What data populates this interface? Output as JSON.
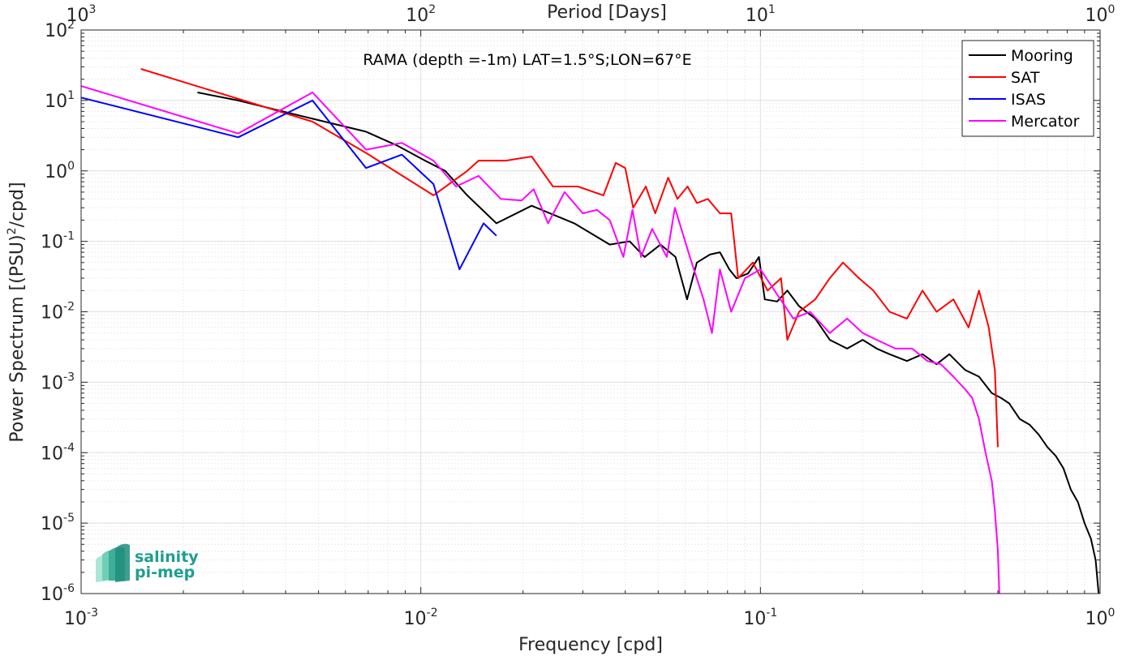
{
  "chart_data": {
    "type": "line",
    "annotation": "RAMA (depth =-1m) LAT=1.5°S;LON=67°E",
    "xlabel": "Frequency [cpd]",
    "ylabel": "Power Spectrum [(PSU)²/cpd]",
    "x2label": "Period [Days]",
    "xscale": "log",
    "yscale": "log",
    "xlim": [
      0.001,
      1
    ],
    "ylim": [
      1e-06,
      100
    ],
    "x_ticks": [
      {
        "value": 0.001,
        "base": "10",
        "exp": "-3"
      },
      {
        "value": 0.01,
        "base": "10",
        "exp": "-2"
      },
      {
        "value": 0.1,
        "base": "10",
        "exp": "-1"
      },
      {
        "value": 1,
        "base": "10",
        "exp": "0"
      }
    ],
    "x2_ticks": [
      {
        "value": 0.001,
        "base": "10",
        "exp": "3"
      },
      {
        "value": 0.01,
        "base": "10",
        "exp": "2"
      },
      {
        "value": 0.1,
        "base": "10",
        "exp": "1"
      },
      {
        "value": 1,
        "base": "10",
        "exp": "0"
      }
    ],
    "y_ticks": [
      {
        "value": 100,
        "base": "10",
        "exp": "2"
      },
      {
        "value": 10,
        "base": "10",
        "exp": "1"
      },
      {
        "value": 1,
        "base": "10",
        "exp": "0"
      },
      {
        "value": 0.1,
        "base": "10",
        "exp": "-1"
      },
      {
        "value": 0.01,
        "base": "10",
        "exp": "-2"
      },
      {
        "value": 0.001,
        "base": "10",
        "exp": "-3"
      },
      {
        "value": 0.0001,
        "base": "10",
        "exp": "-4"
      },
      {
        "value": 1e-05,
        "base": "10",
        "exp": "-5"
      },
      {
        "value": 1e-06,
        "base": "10",
        "exp": "-6"
      }
    ],
    "grid": true,
    "legend_position": "top-right",
    "series": [
      {
        "name": "Mooring",
        "color": "#000000",
        "points": [
          [
            0.0022,
            13.0
          ],
          [
            0.0029,
            10.0
          ],
          [
            0.0048,
            5.5
          ],
          [
            0.0069,
            3.6
          ],
          [
            0.0085,
            2.3
          ],
          [
            0.0103,
            1.4
          ],
          [
            0.0118,
            1.0
          ],
          [
            0.0137,
            0.45
          ],
          [
            0.0167,
            0.18
          ],
          [
            0.0212,
            0.32
          ],
          [
            0.0283,
            0.18
          ],
          [
            0.036,
            0.09
          ],
          [
            0.0412,
            0.1
          ],
          [
            0.0456,
            0.06
          ],
          [
            0.0508,
            0.09
          ],
          [
            0.0562,
            0.06
          ],
          [
            0.0608,
            0.015
          ],
          [
            0.065,
            0.05
          ],
          [
            0.071,
            0.065
          ],
          [
            0.076,
            0.07
          ],
          [
            0.081,
            0.04
          ],
          [
            0.085,
            0.03
          ],
          [
            0.092,
            0.035
          ],
          [
            0.099,
            0.06
          ],
          [
            0.103,
            0.015
          ],
          [
            0.112,
            0.014
          ],
          [
            0.12,
            0.02
          ],
          [
            0.13,
            0.012
          ],
          [
            0.145,
            0.008
          ],
          [
            0.16,
            0.004
          ],
          [
            0.18,
            0.003
          ],
          [
            0.2,
            0.004
          ],
          [
            0.22,
            0.003
          ],
          [
            0.24,
            0.0025
          ],
          [
            0.27,
            0.002
          ],
          [
            0.3,
            0.0025
          ],
          [
            0.33,
            0.0018
          ],
          [
            0.36,
            0.0025
          ],
          [
            0.4,
            0.0015
          ],
          [
            0.44,
            0.0012
          ],
          [
            0.48,
            0.0007
          ],
          [
            0.51,
            0.0006
          ],
          [
            0.54,
            0.0005
          ],
          [
            0.58,
            0.0003
          ],
          [
            0.62,
            0.00025
          ],
          [
            0.66,
            0.00018
          ],
          [
            0.7,
            0.00012
          ],
          [
            0.74,
            9e-05
          ],
          [
            0.78,
            6e-05
          ],
          [
            0.82,
            3e-05
          ],
          [
            0.86,
            2e-05
          ],
          [
            0.9,
            1e-05
          ],
          [
            0.94,
            6e-06
          ],
          [
            0.97,
            3e-06
          ],
          [
            0.99,
            1e-06
          ]
        ]
      },
      {
        "name": "SAT",
        "color": "#ff0000",
        "points": [
          [
            0.0015,
            28.0
          ],
          [
            0.0048,
            5.0
          ],
          [
            0.0069,
            1.8
          ],
          [
            0.0109,
            0.45
          ],
          [
            0.0137,
            1.0
          ],
          [
            0.0148,
            1.4
          ],
          [
            0.0178,
            1.4
          ],
          [
            0.0212,
            1.6
          ],
          [
            0.0245,
            0.6
          ],
          [
            0.029,
            0.6
          ],
          [
            0.0345,
            0.45
          ],
          [
            0.0375,
            1.3
          ],
          [
            0.04,
            1.1
          ],
          [
            0.0422,
            0.3
          ],
          [
            0.046,
            0.6
          ],
          [
            0.049,
            0.25
          ],
          [
            0.0535,
            0.8
          ],
          [
            0.057,
            0.4
          ],
          [
            0.061,
            0.6
          ],
          [
            0.065,
            0.35
          ],
          [
            0.07,
            0.4
          ],
          [
            0.076,
            0.25
          ],
          [
            0.082,
            0.25
          ],
          [
            0.086,
            0.03
          ],
          [
            0.095,
            0.05
          ],
          [
            0.105,
            0.02
          ],
          [
            0.115,
            0.03
          ],
          [
            0.12,
            0.004
          ],
          [
            0.13,
            0.01
          ],
          [
            0.145,
            0.015
          ],
          [
            0.16,
            0.03
          ],
          [
            0.175,
            0.05
          ],
          [
            0.195,
            0.03
          ],
          [
            0.215,
            0.02
          ],
          [
            0.24,
            0.01
          ],
          [
            0.27,
            0.008
          ],
          [
            0.3,
            0.02
          ],
          [
            0.33,
            0.01
          ],
          [
            0.37,
            0.015
          ],
          [
            0.41,
            0.006
          ],
          [
            0.44,
            0.02
          ],
          [
            0.47,
            0.006
          ],
          [
            0.49,
            0.0015
          ],
          [
            0.5,
            0.00012
          ]
        ]
      },
      {
        "name": "ISAS",
        "color": "#0000ff",
        "points": [
          [
            0.001,
            11.0
          ],
          [
            0.0029,
            3.0
          ],
          [
            0.0048,
            10.0
          ],
          [
            0.0069,
            1.1
          ],
          [
            0.0088,
            1.7
          ],
          [
            0.0109,
            0.65
          ],
          [
            0.013,
            0.04
          ],
          [
            0.0153,
            0.18
          ],
          [
            0.0167,
            0.12
          ]
        ]
      },
      {
        "name": "Mercator",
        "color": "#ff00ff",
        "points": [
          [
            0.001,
            16.0
          ],
          [
            0.0029,
            3.4
          ],
          [
            0.0048,
            13.0
          ],
          [
            0.0069,
            2.0
          ],
          [
            0.0088,
            2.5
          ],
          [
            0.0109,
            1.4
          ],
          [
            0.0127,
            0.6
          ],
          [
            0.0148,
            0.85
          ],
          [
            0.0172,
            0.4
          ],
          [
            0.0198,
            0.38
          ],
          [
            0.0215,
            0.55
          ],
          [
            0.0237,
            0.18
          ],
          [
            0.0265,
            0.5
          ],
          [
            0.03,
            0.25
          ],
          [
            0.033,
            0.28
          ],
          [
            0.036,
            0.2
          ],
          [
            0.0395,
            0.06
          ],
          [
            0.042,
            0.28
          ],
          [
            0.0445,
            0.06
          ],
          [
            0.048,
            0.15
          ],
          [
            0.053,
            0.06
          ],
          [
            0.056,
            0.3
          ],
          [
            0.062,
            0.06
          ],
          [
            0.068,
            0.015
          ],
          [
            0.072,
            0.005
          ],
          [
            0.076,
            0.04
          ],
          [
            0.082,
            0.01
          ],
          [
            0.09,
            0.03
          ],
          [
            0.1,
            0.04
          ],
          [
            0.11,
            0.02
          ],
          [
            0.125,
            0.008
          ],
          [
            0.14,
            0.01
          ],
          [
            0.16,
            0.005
          ],
          [
            0.18,
            0.008
          ],
          [
            0.2,
            0.005
          ],
          [
            0.22,
            0.004
          ],
          [
            0.25,
            0.003
          ],
          [
            0.28,
            0.003
          ],
          [
            0.31,
            0.002
          ],
          [
            0.34,
            0.0018
          ],
          [
            0.37,
            0.0012
          ],
          [
            0.4,
            0.0008
          ],
          [
            0.42,
            0.0006
          ],
          [
            0.44,
            0.0003
          ],
          [
            0.46,
            0.0001
          ],
          [
            0.48,
            4e-05
          ],
          [
            0.49,
            1.5e-05
          ],
          [
            0.5,
            4e-06
          ],
          [
            0.505,
            1e-06
          ]
        ]
      }
    ]
  },
  "logo": {
    "line1": "salinity",
    "line2": "pi-mep"
  }
}
